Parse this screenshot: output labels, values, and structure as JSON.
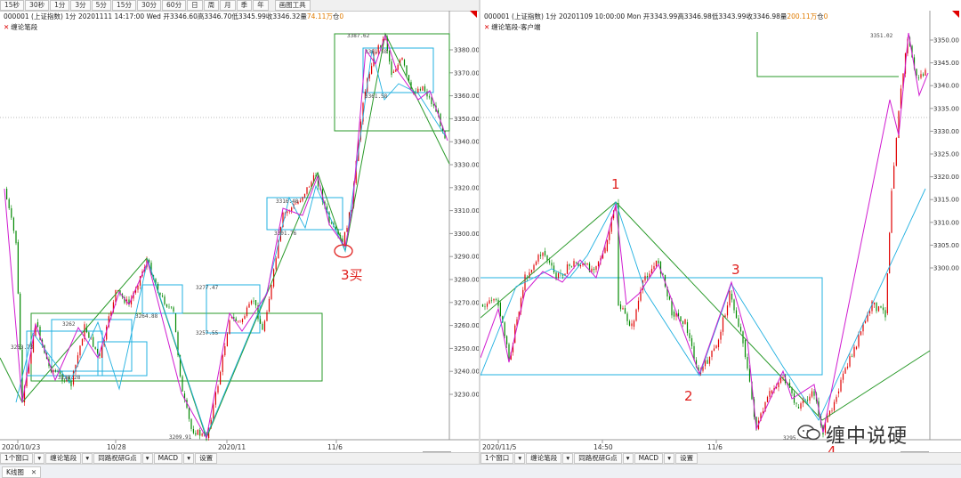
{
  "toolbar": {
    "periods": [
      "15秒",
      "30秒",
      "1分",
      "3分",
      "5分",
      "15分",
      "30分",
      "60分",
      "日",
      "周",
      "月",
      "季",
      "年"
    ],
    "tools": "画图工具"
  },
  "left": {
    "info": {
      "code": "000001",
      "name": "(上证指数)",
      "period": "1分",
      "datetime": "20201111 14:17:00 Wed",
      "open": "开3346.60",
      "high": "高3346.70",
      "low": "低3345.99",
      "close": "收3346.32",
      "amount_prefix": "量",
      "amount": "74.11万",
      "hold": "仓",
      "zero": "0"
    },
    "indicator": "缠论笔段",
    "y_ticks": [
      "3380.00",
      "3370.00",
      "3360.00",
      "3350.00",
      "3340.00",
      "3330.00",
      "3320.00",
      "3310.00",
      "3300.00",
      "3290.00",
      "3280.00",
      "3270.00",
      "3260.00",
      "3250.00",
      "3240.00",
      "3230.00"
    ],
    "x_ticks": [
      "2020/10/23",
      "10/28",
      "2020/11",
      "11/6"
    ],
    "price_labels": [
      "3387.62",
      "3381.58",
      "3361.58",
      "3316.48",
      "3301.76",
      "3277.47",
      "3257.55",
      "3264.88",
      "3262",
      "3253.73",
      "3238.28",
      "3209.91"
    ],
    "annotation": "3买",
    "bottom": [
      "缠论笔段",
      "同路祝研G点",
      "MACD",
      "设置"
    ],
    "window_label": "1个窗口"
  },
  "right": {
    "info": {
      "code": "000001",
      "name": "(上证指数)",
      "period": "1分",
      "datetime": "20201109 10:00:00 Mon",
      "open": "开3343.99",
      "high": "高3346.98",
      "low": "低3343.99",
      "close": "收3346.98",
      "amount_prefix": "量",
      "amount": "200.11万",
      "hold": "仓",
      "zero": "0"
    },
    "indicator": "缠论笔段-客户端",
    "y_ticks": [
      "3350.00",
      "3345.00",
      "3340.00",
      "3335.00",
      "3330.00",
      "3325.00",
      "3320.00",
      "3315.00",
      "3310.00",
      "3305.00",
      "3300.00"
    ],
    "x_ticks": [
      "2020/11/5",
      "14:50",
      "11/6"
    ],
    "price_labels": [
      "3351.02",
      "3295."
    ],
    "annotations": [
      "1",
      "2",
      "3",
      "4"
    ],
    "bottom": [
      "缠论笔段",
      "同路祝研G点",
      "MACD",
      "设置"
    ],
    "window_label": "1个窗口"
  },
  "tab": "K线图",
  "watermark": "缠中说硬",
  "colors": {
    "up": "#e00000",
    "down": "#008800",
    "bi": "#d01bd0",
    "seg_cyan": "#20b0e0",
    "zs_green": "#2a9a2a",
    "anno": "#e0201e"
  }
}
